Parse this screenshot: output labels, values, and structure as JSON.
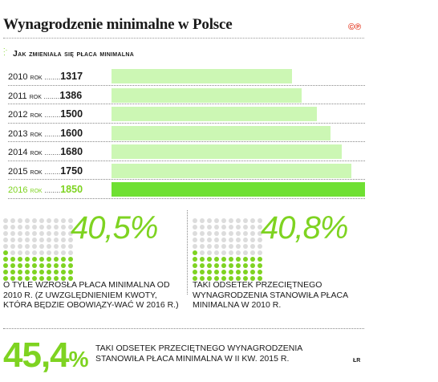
{
  "title": "Wynagrodzenie minimalne w Polsce",
  "logo": "©℗",
  "subtitle": "Jak zmieniała się płaca minimalna",
  "source": "ŁR",
  "chart_data": {
    "type": "bar",
    "orientation": "horizontal",
    "categories": [
      "2010",
      "2011",
      "2012",
      "2013",
      "2014",
      "2015",
      "2016"
    ],
    "category_suffix": "rok",
    "values": [
      1317,
      1386,
      1500,
      1600,
      1680,
      1750,
      1850
    ],
    "highlight_index": 6,
    "colors": {
      "bar": "#ccf7b4",
      "highlight": "#6fe033",
      "text_highlight": "#7ed321"
    }
  },
  "stats": [
    {
      "value": "40,5%",
      "fraction": 0.405,
      "text": "O TYLE WZROSŁA PŁACA MINIMALNA OD 2010 R. (Z UWZGLĘDNIENIEM KWOTY, KTÓRA BĘDZIE OBOWIĄZY-WAĆ W 2016 R.)"
    },
    {
      "value": "40,8%",
      "fraction": 0.408,
      "text": "TAKI ODSETEK PRZECIĘTNEGO WYNAGRODZENIA STANOWIŁA PŁACA MINIMALNA W 2010 R."
    }
  ],
  "bottom_stat": {
    "value": "45,4",
    "sign": "%",
    "text": "TAKI ODSETEK PRZECIĘTNEGO WYNAGRODZENIA STANOWIŁA PŁACA MINIMALNA W II KW. 2015 R."
  }
}
